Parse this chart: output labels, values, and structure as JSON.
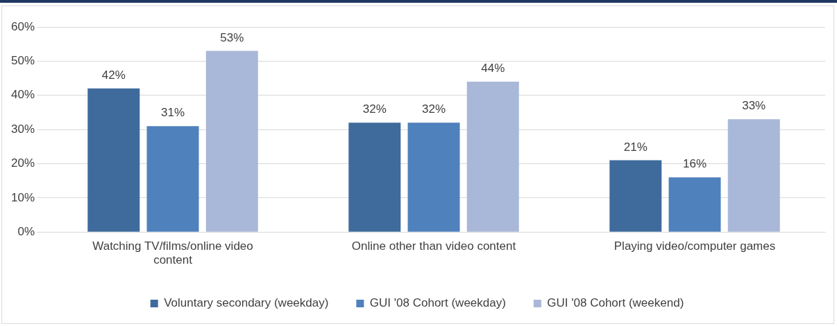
{
  "chart_data": {
    "type": "bar",
    "categories": [
      "Watching TV/films/online video content",
      "Online other than video content",
      "Playing video/computer games"
    ],
    "series": [
      {
        "name": "Voluntary secondary (weekday)",
        "color": "#3f6b9c",
        "values": [
          42,
          32,
          21
        ],
        "value_labels": [
          "42%",
          "32%",
          "21%"
        ]
      },
      {
        "name": "GUI '08 Cohort (weekday)",
        "color": "#4f81bd",
        "values": [
          31,
          32,
          16
        ],
        "value_labels": [
          "31%",
          "32%",
          "16%"
        ]
      },
      {
        "name": "GUI '08 Cohort (weekend)",
        "color": "#a9b8d8",
        "values": [
          53,
          44,
          33
        ],
        "value_labels": [
          "53%",
          "44%",
          "33%"
        ]
      }
    ],
    "ylim": [
      0,
      60
    ],
    "yticks": [
      {
        "value": 0,
        "label": "0%"
      },
      {
        "value": 10,
        "label": "10%"
      },
      {
        "value": 20,
        "label": "20%"
      },
      {
        "value": 30,
        "label": "30%"
      },
      {
        "value": 40,
        "label": "40%"
      },
      {
        "value": 50,
        "label": "50%"
      },
      {
        "value": 60,
        "label": "60%"
      }
    ],
    "grid": "y",
    "legend": "bottom"
  }
}
